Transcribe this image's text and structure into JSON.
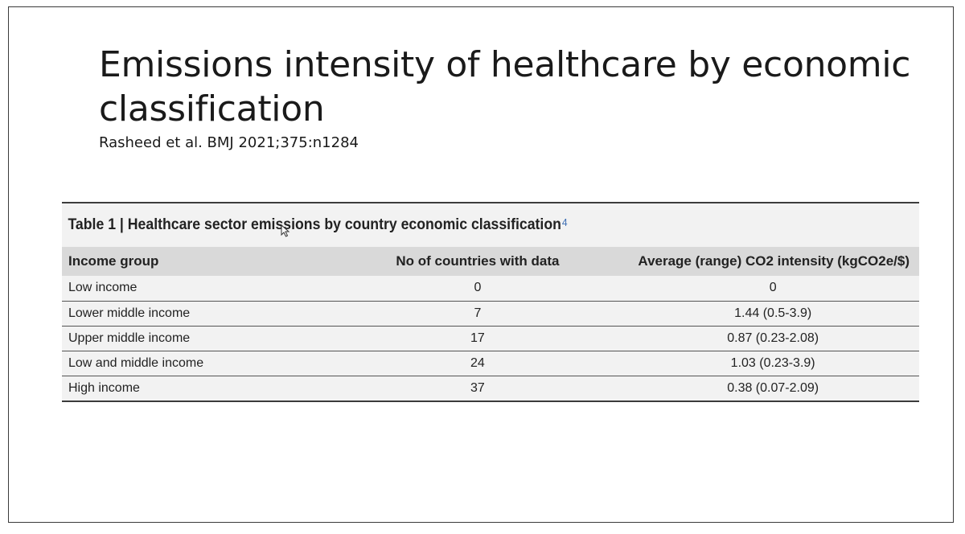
{
  "slide": {
    "title": "Emissions intensity of healthcare by economic classification",
    "citation": "Rasheed et al. BMJ 2021;375:n1284"
  },
  "table": {
    "caption": "Table 1 | Healthcare sector emissions by country economic classification",
    "caption_ref": "4",
    "headers": [
      "Income group",
      "No of countries with data",
      "Average (range) CO2 intensity (kgCO2e/$)"
    ],
    "rows": [
      [
        "Low income",
        "0",
        "0"
      ],
      [
        "Lower middle income",
        "7",
        "1.44 (0.5-3.9)"
      ],
      [
        "Upper middle income",
        "17",
        "0.87 (0.23-2.08)"
      ],
      [
        "Low and middle income",
        "24",
        "1.03 (0.23-3.9)"
      ],
      [
        "High income",
        "37",
        "0.38 (0.07-2.09)"
      ]
    ]
  },
  "icons": {
    "cursor": "mouse-pointer-icon"
  }
}
